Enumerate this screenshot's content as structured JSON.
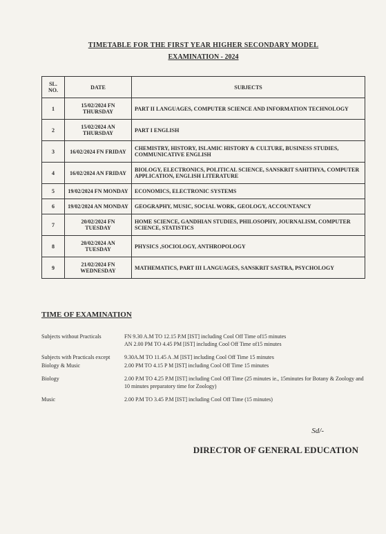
{
  "title_line1": "TIMETABLE FOR THE FIRST YEAR HIGHER SECONDARY   MODEL",
  "title_line2": "EXAMINATION - 2024",
  "table": {
    "headers": {
      "sl": "SL. NO.",
      "date": "DATE",
      "subjects": "SUBJECTS"
    },
    "rows": [
      {
        "sl": "1",
        "date": "15/02/2024 FN THURSDAY",
        "subjects": "PART II LANGUAGES, COMPUTER SCIENCE AND INFORMATION TECHNOLOGY"
      },
      {
        "sl": "2",
        "date": "15/02/2024 AN THURSDAY",
        "subjects": "PART I ENGLISH"
      },
      {
        "sl": "3",
        "date": "16/02/2024 FN FRIDAY",
        "subjects": "CHEMISTRY, HISTORY, ISLAMIC HISTORY & CULTURE, BUSINESS STUDIES, COMMUNICATIVE ENGLISH"
      },
      {
        "sl": "4",
        "date": "16/02/2024 AN FRIDAY",
        "subjects": "BIOLOGY, ELECTRONICS, POLITICAL SCIENCE, SANSKRIT SAHITHYA, COMPUTER APPLICATION, ENGLISH LITERATURE"
      },
      {
        "sl": "5",
        "date": "19/02/2024 FN MONDAY",
        "subjects": "ECONOMICS, ELECTRONIC SYSTEMS"
      },
      {
        "sl": "6",
        "date": "19/02/2024 AN MONDAY",
        "subjects": "GEOGRAPHY, MUSIC, SOCIAL WORK, GEOLOGY, ACCOUNTANCY"
      },
      {
        "sl": "7",
        "date": "20/02/2024 FN TUESDAY",
        "subjects": "HOME SCIENCE, GANDHIAN STUDIES, PHILOSOPHY, JOURNALISM,          COMPUTER SCIENCE, STATISTICS"
      },
      {
        "sl": "8",
        "date": "20/02/2024 AN TUESDAY",
        "subjects": "PHYSICS ,SOCIOLOGY, ANTHROPOLOGY"
      },
      {
        "sl": "9",
        "date": "21/02/2024 FN WEDNESDAY",
        "subjects": "MATHEMATICS, PART III LANGUAGES, SANSKRIT SASTRA, PSYCHOLOGY"
      }
    ]
  },
  "section_heading": "TIME OF EXAMINATION",
  "timings": [
    {
      "label": "Subjects without Practicals",
      "value": "FN 9.30 A.M TO 12.15 P.M  [IST] including Cool Off Time of15 minutes\nAN 2.00 PM  TO 4.45  PM  [IST] including Cool Off Time of15 minutes"
    },
    {
      "label": "Subjects with Practicals except Biology & Music",
      "value": "9.30A.M TO 11.45 A .M   [IST] including Cool Off Time 15 minutes\n2.00 PM  TO 4.15  P M   [IST] including Cool Off Time 15 minutes"
    },
    {
      "label": "Biology",
      "value": "2.00  P.M TO 4.25 P.M [IST] including Cool Off Time (25 minutes ie., 15minutes for Botany & Zoology and 10 minutes preparatory time for Zoology)"
    },
    {
      "label": "Music",
      "value": "2.00 P.M TO 3.45 P.M [IST] including Cool Off Time (15 minutes)"
    }
  ],
  "signature": "Sd/-",
  "director": "DIRECTOR OF GENERAL EDUCATION"
}
